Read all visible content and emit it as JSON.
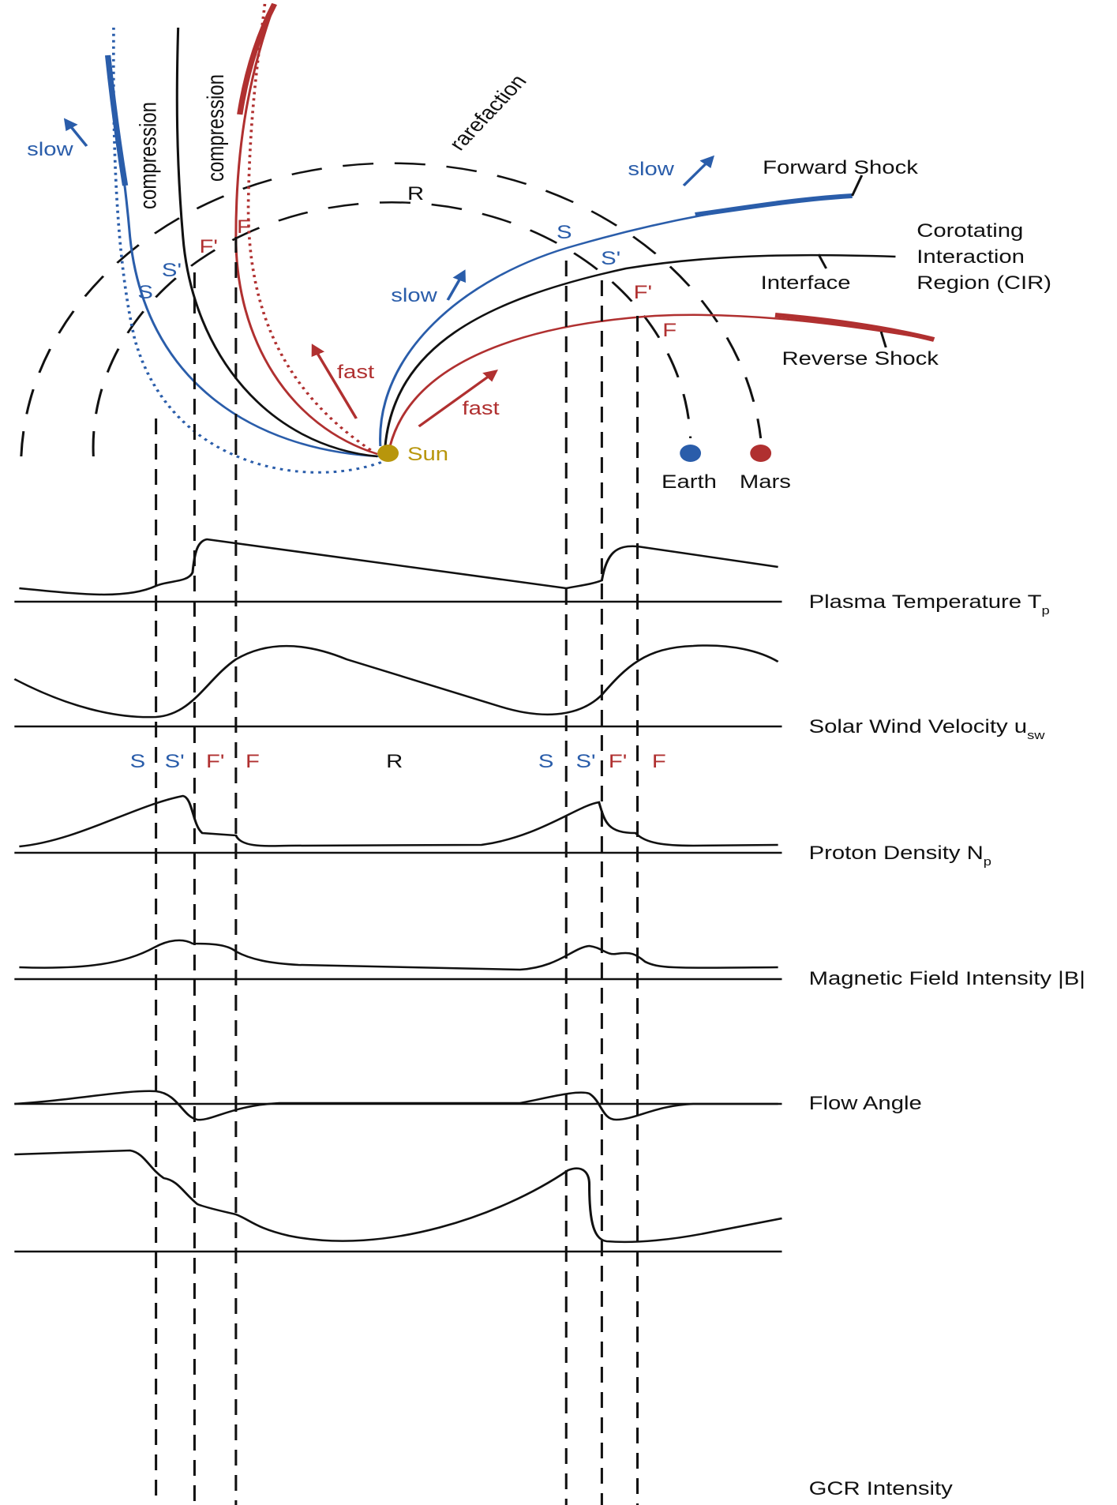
{
  "diagram": {
    "labels": {
      "slow_left": "slow",
      "compression_1": "compression",
      "compression_2": "compression",
      "rarefaction": "rarefaction",
      "R_top": "R",
      "slow_right": "slow",
      "forward_shock": "Forward Shock",
      "cir": [
        "Corotating",
        "Interaction",
        "Region (CIR)"
      ],
      "interface": "Interface",
      "S_right": "S",
      "S_prime_right": "S'",
      "F_prime_right": "F'",
      "F_right": "F",
      "S_left": "S",
      "S_prime_left": "S'",
      "F_prime_left": "F'",
      "F_left": "F",
      "slow_mid": "slow",
      "fast_left": "fast",
      "fast_right": "fast",
      "reverse_shock": "Reverse Shock",
      "sun": "Sun",
      "earth": "Earth",
      "mars": "Mars"
    },
    "markers": [
      "S",
      "S'",
      "F'",
      "F",
      "R",
      "S",
      "S'",
      "F'",
      "F"
    ],
    "panels": [
      {
        "label": "Plasma Temperature T",
        "subscript": "p"
      },
      {
        "label": "Solar Wind Velocity u",
        "subscript": "sw"
      },
      {
        "label": "Proton Density N",
        "subscript": "p"
      },
      {
        "label": "Magnetic Field Intensity |B|"
      },
      {
        "label": "Flow Angle"
      },
      {
        "label": "GCR Intensity"
      }
    ]
  }
}
